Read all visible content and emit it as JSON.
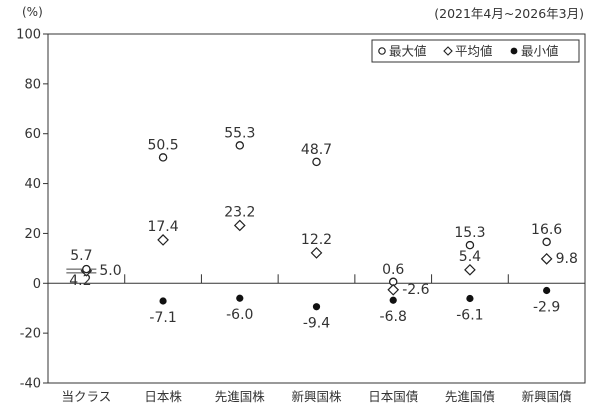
{
  "chart_data": {
    "type": "bar",
    "unit": "(%)",
    "period": "(2021年4月~2026年3月)",
    "ylim": [
      -40,
      100
    ],
    "y_ticks": [
      -40,
      -20,
      0,
      20,
      40,
      60,
      80,
      100
    ],
    "y_tick_labels": [
      "-40",
      "-20",
      "0",
      "20",
      "40",
      "60",
      "80",
      "100"
    ],
    "categories": [
      "当クラス",
      "日本株",
      "先進国株",
      "新興国株",
      "日本国債",
      "先進国債",
      "新興国債"
    ],
    "highlighted_category": "当クラス",
    "series": [
      {
        "name": "最大値",
        "marker": "circle-open",
        "values": [
          5.7,
          50.5,
          55.3,
          48.7,
          0.6,
          15.3,
          16.6
        ],
        "labels": [
          "5.7",
          "50.5",
          "55.3",
          "48.7",
          "0.6",
          "15.3",
          "16.6"
        ]
      },
      {
        "name": "平均値",
        "marker": "diamond-open",
        "values": [
          5.0,
          17.4,
          23.2,
          12.2,
          -2.6,
          5.4,
          9.8
        ],
        "labels": [
          "5.0",
          "17.4",
          "23.2",
          "12.2",
          "-2.6",
          "5.4",
          "9.8"
        ]
      },
      {
        "name": "最小値",
        "marker": "circle-filled",
        "values": [
          4.2,
          -7.1,
          -6.0,
          -9.4,
          -6.8,
          -6.1,
          -2.9
        ],
        "labels": [
          "4.2",
          "-7.1",
          "-6.0",
          "-9.4",
          "-6.8",
          "-6.1",
          "-2.9"
        ]
      }
    ],
    "legend": {
      "placement": "top-right",
      "items": [
        {
          "symbol": "○",
          "label": "最大値"
        },
        {
          "symbol": "◇",
          "label": "平均値"
        },
        {
          "symbol": "●",
          "label": "最小値"
        }
      ]
    },
    "colors": {
      "bar": "#b4b4b4",
      "highlight_bg": "#ebebeb",
      "axis": "#333333"
    },
    "grid": false
  }
}
